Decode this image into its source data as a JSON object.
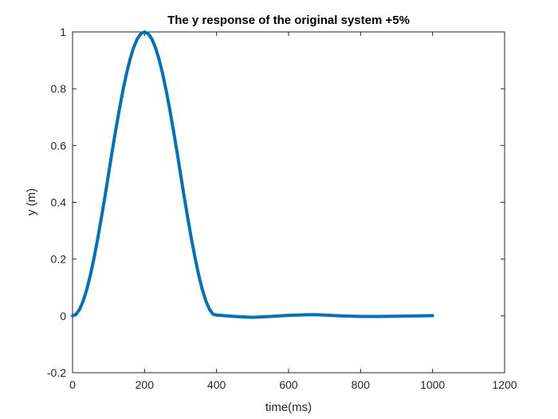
{
  "chart_data": {
    "type": "line",
    "title": "The y response of the original system +5%",
    "xlabel": "time(ms)",
    "ylabel": "y (m)",
    "xlim": [
      0,
      1200
    ],
    "ylim": [
      -0.2,
      1
    ],
    "xticks": [
      0,
      200,
      400,
      600,
      800,
      1000,
      1200
    ],
    "yticks": [
      -0.2,
      0,
      0.2,
      0.4,
      0.6,
      0.8,
      1
    ],
    "xtick_labels": [
      "0",
      "200",
      "400",
      "600",
      "800",
      "1000",
      "1200"
    ],
    "ytick_labels": [
      "-0.2",
      "0",
      "0.2",
      "0.4",
      "0.6",
      "0.8",
      "1"
    ],
    "grid": false,
    "box": true,
    "series": [
      {
        "color": "#0072BD",
        "x": [
          0,
          10,
          20,
          30,
          40,
          50,
          60,
          70,
          80,
          90,
          100,
          110,
          120,
          130,
          140,
          150,
          160,
          170,
          180,
          190,
          200,
          210,
          220,
          230,
          240,
          250,
          260,
          270,
          280,
          290,
          300,
          310,
          320,
          330,
          340,
          350,
          360,
          370,
          380,
          390,
          400,
          450,
          500,
          550,
          600,
          650,
          680,
          700,
          750,
          800,
          850,
          900,
          950,
          1000
        ],
        "y": [
          0,
          0.006,
          0.024,
          0.054,
          0.095,
          0.146,
          0.206,
          0.273,
          0.345,
          0.42,
          0.5,
          0.579,
          0.655,
          0.727,
          0.794,
          0.854,
          0.905,
          0.946,
          0.976,
          0.994,
          1.0,
          0.994,
          0.976,
          0.946,
          0.905,
          0.854,
          0.794,
          0.727,
          0.655,
          0.579,
          0.5,
          0.42,
          0.345,
          0.273,
          0.206,
          0.146,
          0.095,
          0.054,
          0.024,
          0.006,
          0.003,
          -0.002,
          -0.005,
          -0.002,
          0.002,
          0.004,
          0.004,
          0.003,
          0.0,
          -0.002,
          -0.002,
          -0.001,
          0.0,
          0.001
        ]
      }
    ]
  }
}
